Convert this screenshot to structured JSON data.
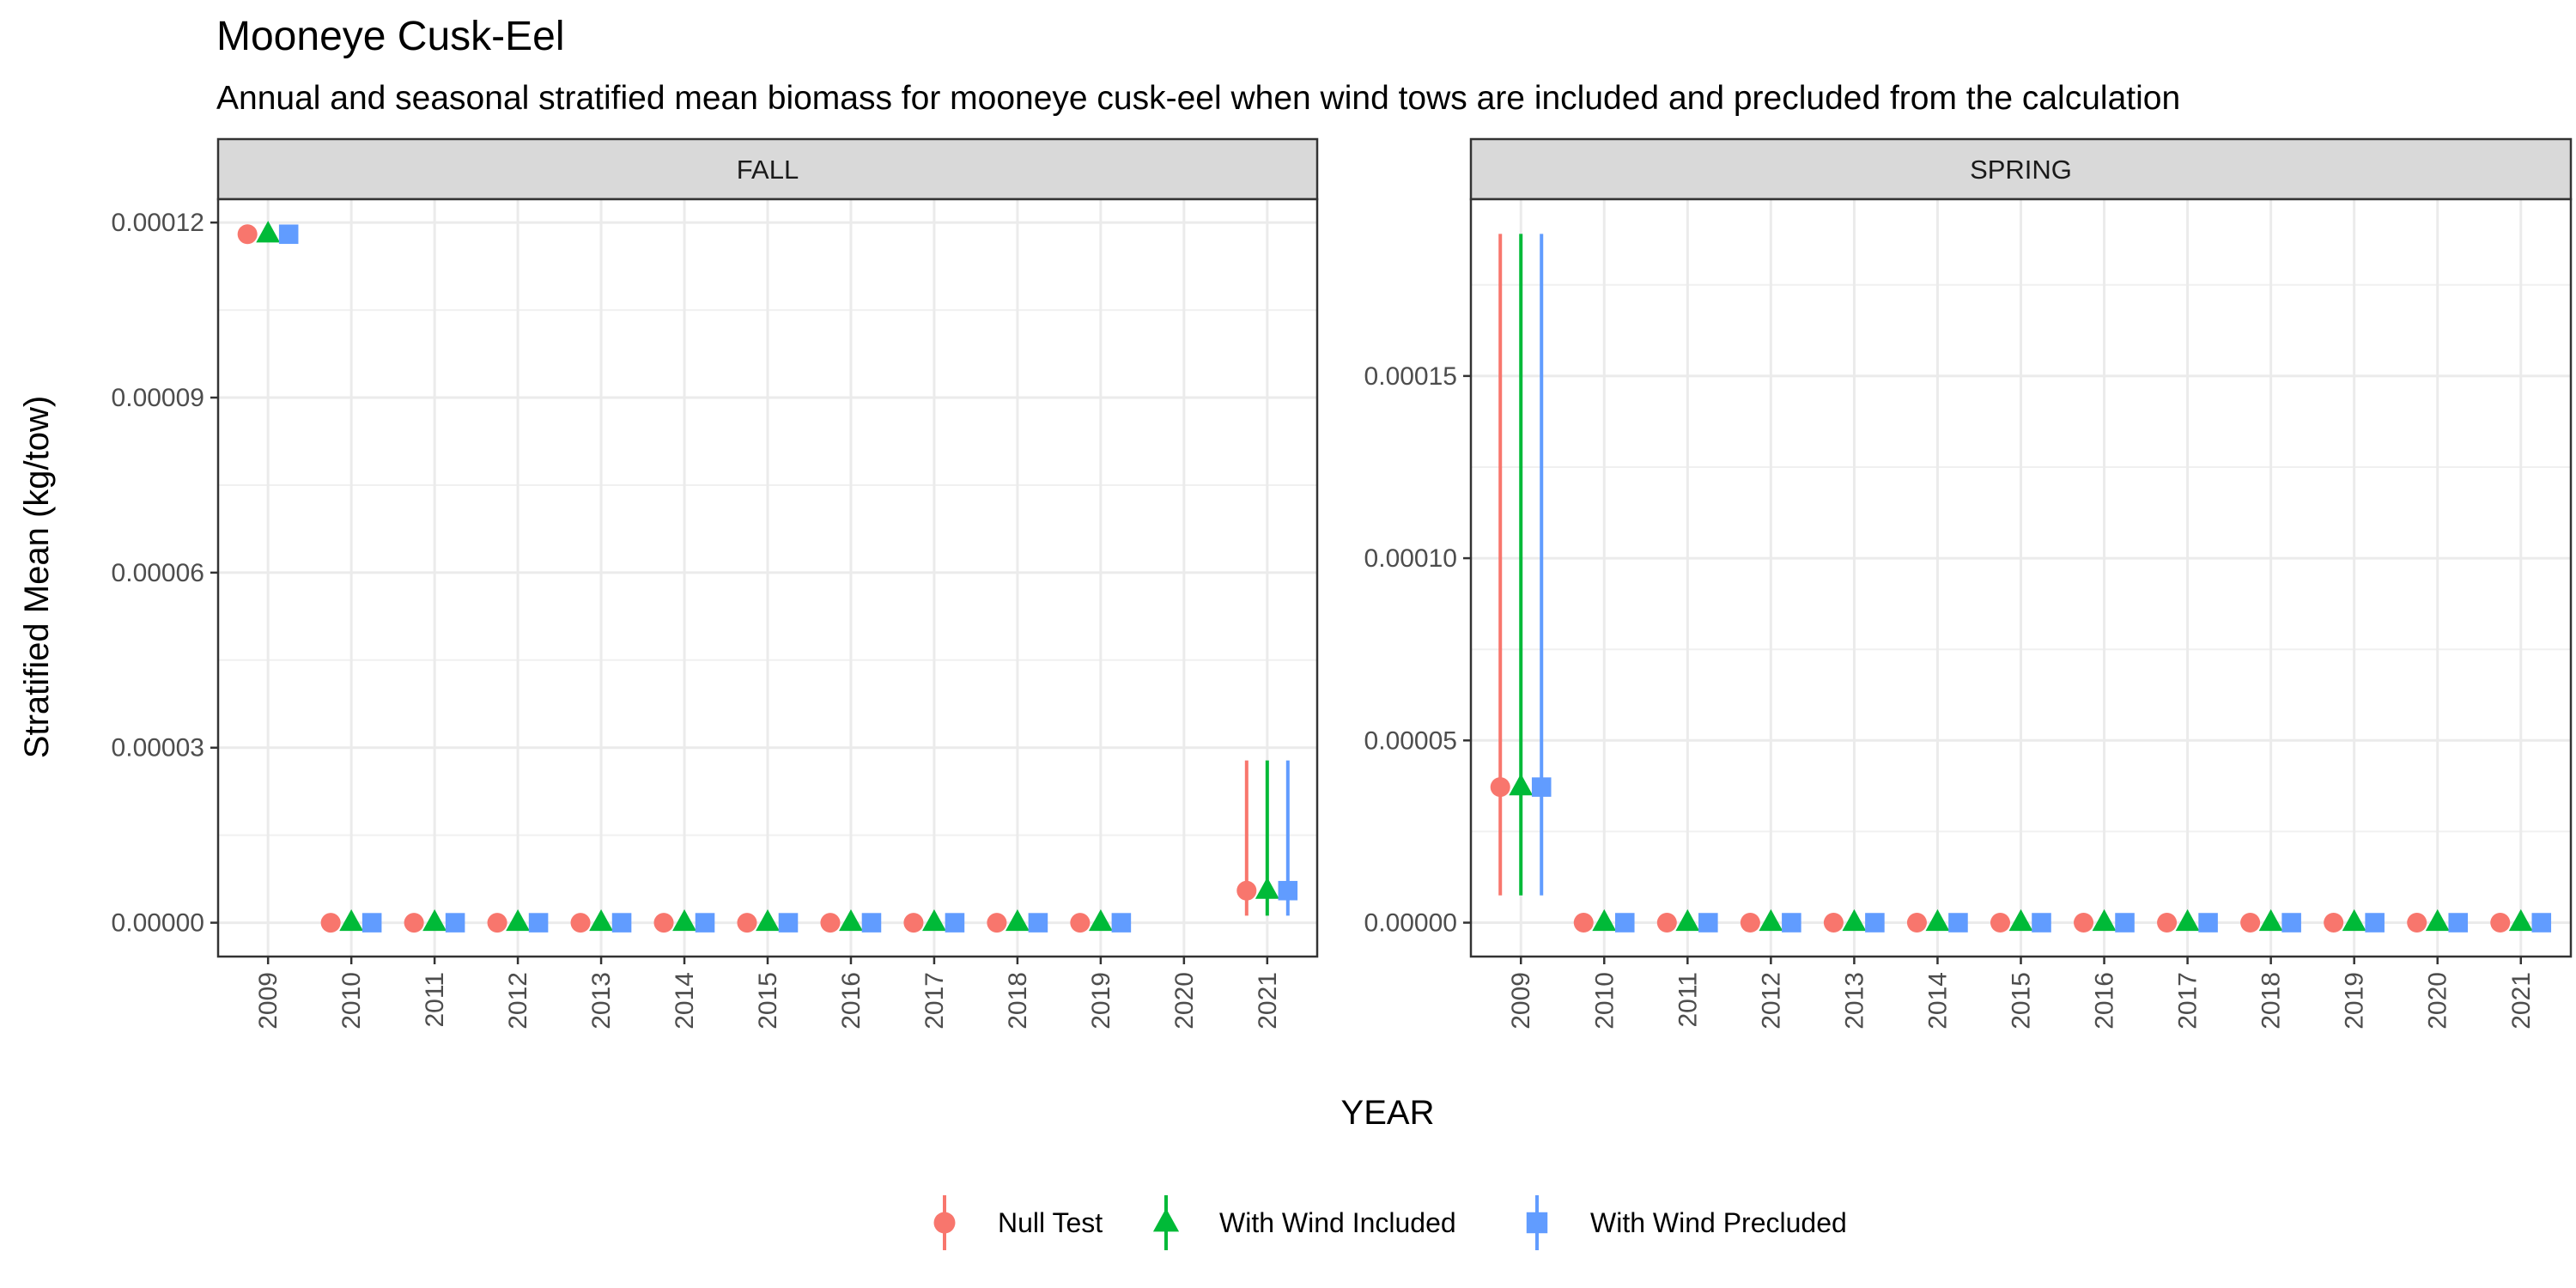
{
  "chart_data": {
    "type": "scatter",
    "title": "Mooneye Cusk-Eel",
    "subtitle": "Annual and seasonal stratified mean biomass for mooneye cusk-eel when wind tows are included and precluded from the calculation",
    "xlabel": "YEAR",
    "ylabel": "Stratified Mean (kg/tow)",
    "legend_position": "bottom",
    "grid": true,
    "series": [
      {
        "name": "Null Test",
        "color": "#F8766D",
        "shape": "circle"
      },
      {
        "name": "With Wind Included",
        "color": "#00BA38",
        "shape": "triangle"
      },
      {
        "name": "With Wind Precluded",
        "color": "#619CFF",
        "shape": "square"
      }
    ],
    "panels": [
      {
        "label": "FALL",
        "years": [
          "2009",
          "2010",
          "2011",
          "2012",
          "2013",
          "2014",
          "2015",
          "2016",
          "2017",
          "2018",
          "2019",
          "2020",
          "2021"
        ],
        "y_ticks": [
          "0.00000",
          "0.00003",
          "0.00006",
          "0.00009",
          "0.00012"
        ],
        "y_tick_values": [
          0,
          3e-05,
          6e-05,
          9e-05,
          0.00012
        ],
        "ylim": [
          -5.8e-06,
          0.000124
        ],
        "data": [
          {
            "year": "2009",
            "values": [
              0.000118,
              0.000118,
              0.000118
            ],
            "lo": [
              null,
              null,
              null
            ],
            "hi": [
              null,
              null,
              null
            ]
          },
          {
            "year": "2010",
            "values": [
              0,
              0,
              0
            ],
            "lo": [
              null,
              null,
              null
            ],
            "hi": [
              null,
              null,
              null
            ]
          },
          {
            "year": "2011",
            "values": [
              0,
              0,
              0
            ],
            "lo": [
              null,
              null,
              null
            ],
            "hi": [
              null,
              null,
              null
            ]
          },
          {
            "year": "2012",
            "values": [
              0,
              0,
              0
            ],
            "lo": [
              null,
              null,
              null
            ],
            "hi": [
              null,
              null,
              null
            ]
          },
          {
            "year": "2013",
            "values": [
              0,
              0,
              0
            ],
            "lo": [
              null,
              null,
              null
            ],
            "hi": [
              null,
              null,
              null
            ]
          },
          {
            "year": "2014",
            "values": [
              0,
              0,
              0
            ],
            "lo": [
              null,
              null,
              null
            ],
            "hi": [
              null,
              null,
              null
            ]
          },
          {
            "year": "2015",
            "values": [
              0,
              0,
              0
            ],
            "lo": [
              null,
              null,
              null
            ],
            "hi": [
              null,
              null,
              null
            ]
          },
          {
            "year": "2016",
            "values": [
              0,
              0,
              0
            ],
            "lo": [
              null,
              null,
              null
            ],
            "hi": [
              null,
              null,
              null
            ]
          },
          {
            "year": "2017",
            "values": [
              0,
              0,
              0
            ],
            "lo": [
              null,
              null,
              null
            ],
            "hi": [
              null,
              null,
              null
            ]
          },
          {
            "year": "2018",
            "values": [
              0,
              0,
              0
            ],
            "lo": [
              null,
              null,
              null
            ],
            "hi": [
              null,
              null,
              null
            ]
          },
          {
            "year": "2019",
            "values": [
              0,
              0,
              0
            ],
            "lo": [
              null,
              null,
              null
            ],
            "hi": [
              null,
              null,
              null
            ]
          },
          {
            "year": "2021",
            "values": [
              5.5e-06,
              5.5e-06,
              5.5e-06
            ],
            "lo": [
              1.2e-06,
              1.2e-06,
              1.2e-06
            ],
            "hi": [
              2.78e-05,
              2.78e-05,
              2.78e-05
            ]
          }
        ]
      },
      {
        "label": "SPRING",
        "years": [
          "2009",
          "2010",
          "2011",
          "2012",
          "2013",
          "2014",
          "2015",
          "2016",
          "2017",
          "2018",
          "2019",
          "2020",
          "2021"
        ],
        "y_ticks": [
          "0.00000",
          "0.00005",
          "0.00010",
          "0.00015"
        ],
        "y_tick_values": [
          0,
          5e-05,
          0.0001,
          0.00015
        ],
        "ylim": [
          -9.3e-06,
          0.0001985
        ],
        "data": [
          {
            "year": "2009",
            "values": [
              3.72e-05,
              3.72e-05,
              3.72e-05
            ],
            "lo": [
              7.5e-06,
              7.5e-06,
              7.5e-06
            ],
            "hi": [
              0.000189,
              0.000189,
              0.000189
            ]
          },
          {
            "year": "2010",
            "values": [
              0,
              0,
              0
            ],
            "lo": [
              null,
              null,
              null
            ],
            "hi": [
              null,
              null,
              null
            ]
          },
          {
            "year": "2011",
            "values": [
              0,
              0,
              0
            ],
            "lo": [
              null,
              null,
              null
            ],
            "hi": [
              null,
              null,
              null
            ]
          },
          {
            "year": "2012",
            "values": [
              0,
              0,
              0
            ],
            "lo": [
              null,
              null,
              null
            ],
            "hi": [
              null,
              null,
              null
            ]
          },
          {
            "year": "2013",
            "values": [
              0,
              0,
              0
            ],
            "lo": [
              null,
              null,
              null
            ],
            "hi": [
              null,
              null,
              null
            ]
          },
          {
            "year": "2014",
            "values": [
              0,
              0,
              0
            ],
            "lo": [
              null,
              null,
              null
            ],
            "hi": [
              null,
              null,
              null
            ]
          },
          {
            "year": "2015",
            "values": [
              0,
              0,
              0
            ],
            "lo": [
              null,
              null,
              null
            ],
            "hi": [
              null,
              null,
              null
            ]
          },
          {
            "year": "2016",
            "values": [
              0,
              0,
              0
            ],
            "lo": [
              null,
              null,
              null
            ],
            "hi": [
              null,
              null,
              null
            ]
          },
          {
            "year": "2017",
            "values": [
              0,
              0,
              0
            ],
            "lo": [
              null,
              null,
              null
            ],
            "hi": [
              null,
              null,
              null
            ]
          },
          {
            "year": "2018",
            "values": [
              0,
              0,
              0
            ],
            "lo": [
              null,
              null,
              null
            ],
            "hi": [
              null,
              null,
              null
            ]
          },
          {
            "year": "2019",
            "values": [
              0,
              0,
              0
            ],
            "lo": [
              null,
              null,
              null
            ],
            "hi": [
              null,
              null,
              null
            ]
          },
          {
            "year": "2020",
            "values": [
              0,
              0,
              0
            ],
            "lo": [
              null,
              null,
              null
            ],
            "hi": [
              null,
              null,
              null
            ]
          },
          {
            "year": "2021",
            "values": [
              0,
              0,
              0
            ],
            "lo": [
              null,
              null,
              null
            ],
            "hi": [
              null,
              null,
              null
            ]
          }
        ]
      }
    ]
  }
}
